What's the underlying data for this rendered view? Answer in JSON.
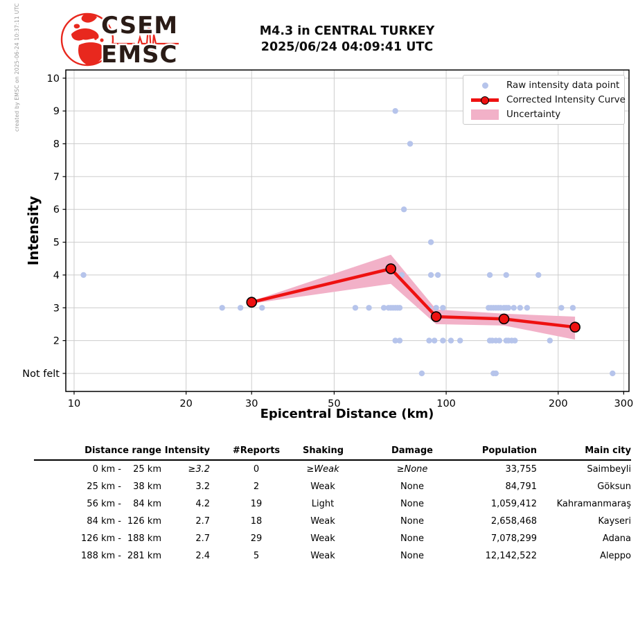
{
  "created_by": "created by EMSC on 2025-06-24 10:37:11 UTC",
  "logo": {
    "line1": "CSEM",
    "line2": "EMSC"
  },
  "title": {
    "line1": "M4.3 in CENTRAL TURKEY",
    "line2": "2025/06/24 04:09:41 UTC"
  },
  "chart_data": {
    "type": "scatter",
    "title": "M4.3 in CENTRAL TURKEY 2025/06/24 04:09:41 UTC",
    "xlabel": "Epicentral Distance (km)",
    "ylabel": "Intensity",
    "grid": true,
    "legend_position": "upper right",
    "legend": [
      "Raw intensity data point",
      "Corrected Intensity Curve",
      "Uncertainty"
    ],
    "x_axis": {
      "scale": "log",
      "ticks": [
        10,
        20,
        30,
        50,
        100,
        200,
        300
      ],
      "range": [
        9.5,
        310
      ]
    },
    "y_axis": {
      "range": [
        0.45,
        10.25
      ],
      "ticks": [
        {
          "value": 10,
          "label": "10"
        },
        {
          "value": 9,
          "label": "9"
        },
        {
          "value": 8,
          "label": "8"
        },
        {
          "value": 7,
          "label": "7"
        },
        {
          "value": 6,
          "label": "6"
        },
        {
          "value": 5,
          "label": "5"
        },
        {
          "value": 4,
          "label": "4"
        },
        {
          "value": 3,
          "label": "3"
        },
        {
          "value": 2,
          "label": "2"
        },
        {
          "value": 1,
          "label": "Not felt"
        }
      ]
    },
    "raw_points": [
      [
        10.6,
        4
      ],
      [
        76,
        4
      ],
      [
        91,
        4
      ],
      [
        95,
        4
      ],
      [
        131,
        4
      ],
      [
        145,
        4
      ],
      [
        177,
        4
      ],
      [
        73,
        9
      ],
      [
        80,
        8
      ],
      [
        77,
        6
      ],
      [
        91,
        5
      ],
      [
        25,
        3
      ],
      [
        28,
        3
      ],
      [
        32,
        3
      ],
      [
        57,
        3
      ],
      [
        62,
        3
      ],
      [
        68,
        3
      ],
      [
        70,
        3
      ],
      [
        71,
        3
      ],
      [
        72,
        3
      ],
      [
        73,
        3
      ],
      [
        74,
        3
      ],
      [
        75,
        3
      ],
      [
        90,
        3
      ],
      [
        94,
        3
      ],
      [
        98,
        3
      ],
      [
        130,
        3
      ],
      [
        132,
        3
      ],
      [
        134,
        3
      ],
      [
        136,
        3
      ],
      [
        138,
        3
      ],
      [
        140,
        3
      ],
      [
        143,
        3
      ],
      [
        145,
        3
      ],
      [
        147,
        3
      ],
      [
        152,
        3
      ],
      [
        158,
        3
      ],
      [
        165,
        3
      ],
      [
        204,
        3
      ],
      [
        219,
        3
      ],
      [
        73,
        2
      ],
      [
        75,
        2
      ],
      [
        90,
        2
      ],
      [
        93,
        2
      ],
      [
        98,
        2
      ],
      [
        103,
        2
      ],
      [
        109,
        2
      ],
      [
        131,
        2
      ],
      [
        133,
        2
      ],
      [
        136,
        2
      ],
      [
        139,
        2
      ],
      [
        145,
        2
      ],
      [
        147,
        2
      ],
      [
        150,
        2
      ],
      [
        153,
        2
      ],
      [
        190,
        2
      ],
      [
        86,
        1
      ],
      [
        134,
        1
      ],
      [
        136,
        1
      ],
      [
        280,
        1
      ]
    ],
    "curve": [
      [
        30,
        3.17
      ],
      [
        71,
        4.19
      ],
      [
        94,
        2.73
      ],
      [
        143,
        2.66
      ],
      [
        222,
        2.41
      ]
    ],
    "uncertainty_band": {
      "upper": [
        [
          30,
          3.2
        ],
        [
          71,
          4.62
        ],
        [
          94,
          2.95
        ],
        [
          143,
          2.82
        ],
        [
          222,
          2.73
        ]
      ],
      "lower": [
        [
          30,
          3.13
        ],
        [
          71,
          3.73
        ],
        [
          94,
          2.5
        ],
        [
          143,
          2.46
        ],
        [
          222,
          2.03
        ]
      ]
    },
    "colors": {
      "raw_point": "#b6c4eb",
      "curve": "#ee1111",
      "uncertainty_band": "#f2b1c8",
      "grid": "#cccccc",
      "logo_red": "#e8281e",
      "logo_dark": "#2a1b16"
    }
  },
  "table": {
    "headers": [
      "Distance range",
      "Intensity",
      "#Reports",
      "Shaking",
      "Damage",
      "Population",
      "Main city"
    ],
    "rows": [
      {
        "range_from": "0 km -",
        "range_to": "25 km",
        "intensity": "≥3.2",
        "reports": "0",
        "shaking": "≥Weak",
        "damage": "≥None",
        "population": "33,755",
        "city": "Saimbeyli"
      },
      {
        "range_from": "25 km -",
        "range_to": "38 km",
        "intensity": "3.2",
        "reports": "2",
        "shaking": "Weak",
        "damage": "None",
        "population": "84,791",
        "city": "Göksun"
      },
      {
        "range_from": "56 km -",
        "range_to": "84 km",
        "intensity": "4.2",
        "reports": "19",
        "shaking": "Light",
        "damage": "None",
        "population": "1,059,412",
        "city": "Kahramanmaraş"
      },
      {
        "range_from": "84 km -",
        "range_to": "126 km",
        "intensity": "2.7",
        "reports": "18",
        "shaking": "Weak",
        "damage": "None",
        "population": "2,658,468",
        "city": "Kayseri"
      },
      {
        "range_from": "126 km -",
        "range_to": "188 km",
        "intensity": "2.7",
        "reports": "29",
        "shaking": "Weak",
        "damage": "None",
        "population": "7,078,299",
        "city": "Adana"
      },
      {
        "range_from": "188 km -",
        "range_to": "281 km",
        "intensity": "2.4",
        "reports": "5",
        "shaking": "Weak",
        "damage": "None",
        "population": "12,142,522",
        "city": "Aleppo"
      }
    ]
  }
}
